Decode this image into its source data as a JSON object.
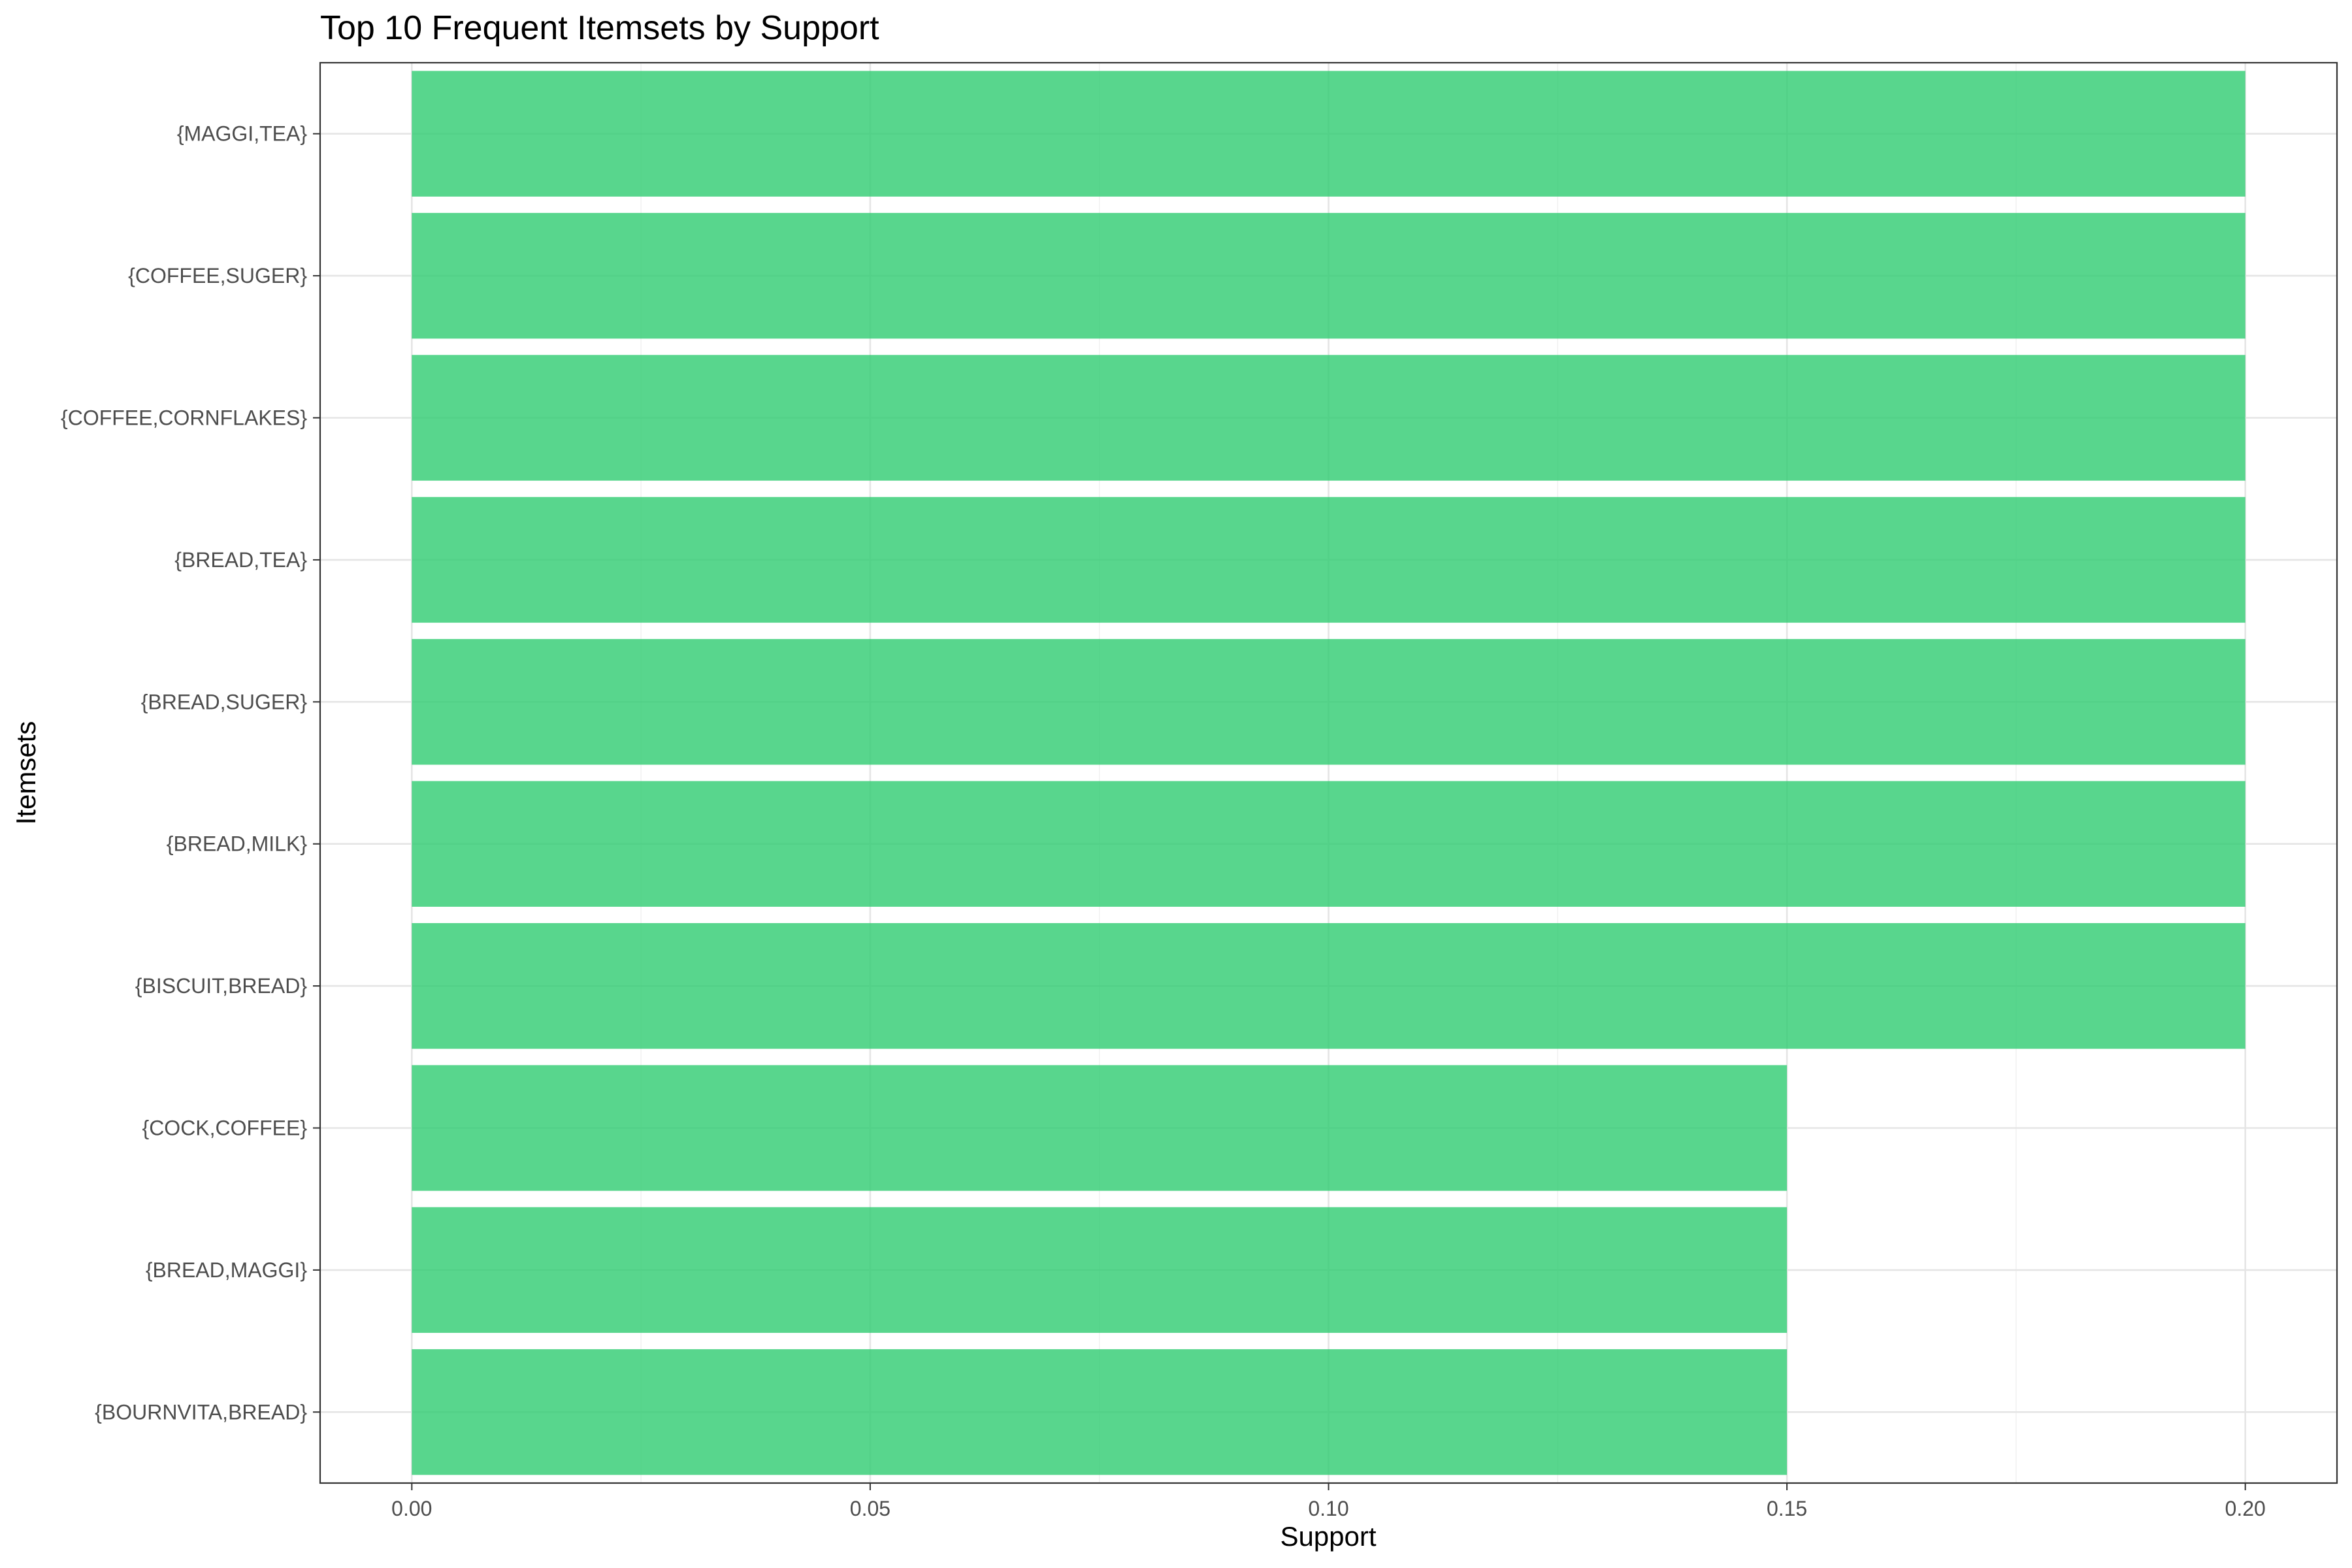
{
  "chart_data": {
    "type": "bar",
    "orientation": "horizontal",
    "title": "Top 10 Frequent Itemsets by Support",
    "xlabel": "Support",
    "ylabel": "Itemsets",
    "categories": [
      "{MAGGI,TEA}",
      "{COFFEE,SUGER}",
      "{COFFEE,CORNFLAKES}",
      "{BREAD,TEA}",
      "{BREAD,SUGER}",
      "{BREAD,MILK}",
      "{BISCUIT,BREAD}",
      "{COCK,COFFEE}",
      "{BREAD,MAGGI}",
      "{BOURNVITA,BREAD}"
    ],
    "values": [
      0.2,
      0.2,
      0.2,
      0.2,
      0.2,
      0.2,
      0.2,
      0.15,
      0.15,
      0.15
    ],
    "xlim": [
      -0.01,
      0.21
    ],
    "xticks": [
      0.0,
      0.05,
      0.1,
      0.15,
      0.2
    ],
    "xtick_labels": [
      "0.00",
      "0.05",
      "0.10",
      "0.15",
      "0.20"
    ],
    "grid": true,
    "legend": "none",
    "bar_color": "#2ecc71",
    "bar_opacity": 0.8
  }
}
